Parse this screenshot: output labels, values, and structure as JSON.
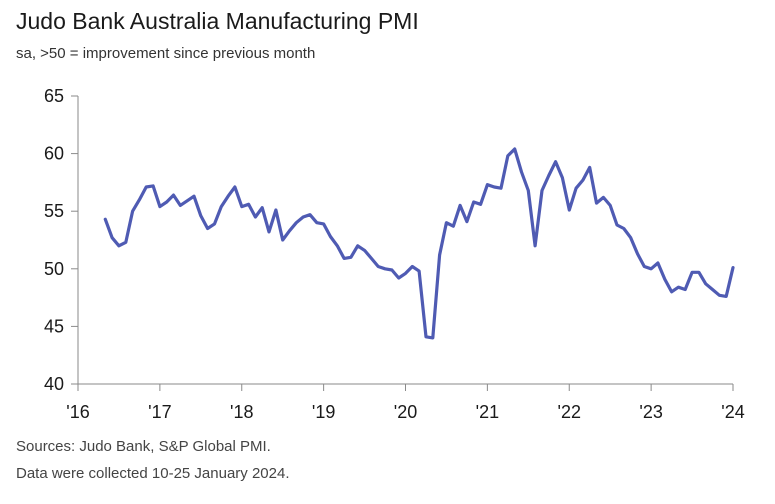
{
  "chart_data": {
    "type": "line",
    "title": "Judo Bank Australia Manufacturing PMI",
    "subtitle": "sa, >50 = improvement since previous month",
    "xlabel": "",
    "ylabel": "",
    "ylim": [
      40,
      65
    ],
    "y_ticks": [
      "40",
      "45",
      "50",
      "55",
      "60",
      "65"
    ],
    "x_ticks": [
      "'16",
      "'17",
      "'18",
      "'19",
      "'20",
      "'21",
      "'22",
      "'23",
      "'24"
    ],
    "grid": false,
    "legend": "none",
    "line_color": "#4f5bb3",
    "series": [
      {
        "x_start": "2016-05",
        "frequency": "monthly",
        "values": [
          54.3,
          52.7,
          52.0,
          52.3,
          55.0,
          56.0,
          57.1,
          57.2,
          55.4,
          55.8,
          56.4,
          55.5,
          55.9,
          56.3,
          54.6,
          53.5,
          53.9,
          55.4,
          56.3,
          57.1,
          55.4,
          55.6,
          54.5,
          55.3,
          53.2,
          55.1,
          52.5,
          53.3,
          54.0,
          54.5,
          54.7,
          54.0,
          53.9,
          52.8,
          52.0,
          50.9,
          51.0,
          52.0,
          51.6,
          50.9,
          50.2,
          50.0,
          49.9,
          49.2,
          49.6,
          50.2,
          49.8,
          44.1,
          44.0,
          51.2,
          54.0,
          53.7,
          55.5,
          54.1,
          55.8,
          55.6,
          57.3,
          57.1,
          57.0,
          59.8,
          60.4,
          58.4,
          56.8,
          52.0,
          56.8,
          58.1,
          59.3,
          57.9,
          55.1,
          57.0,
          57.7,
          58.8,
          55.7,
          56.2,
          55.5,
          53.8,
          53.5,
          52.7,
          51.3,
          50.2,
          50.0,
          50.5,
          49.1,
          48.0,
          48.4,
          48.2,
          49.7,
          49.7,
          48.7,
          48.2,
          47.7,
          47.6,
          50.1
        ]
      }
    ]
  },
  "footer": {
    "line1": "Sources: Judo Bank, S&P Global PMI.",
    "line2": "Data were collected 10-25 January 2024."
  }
}
